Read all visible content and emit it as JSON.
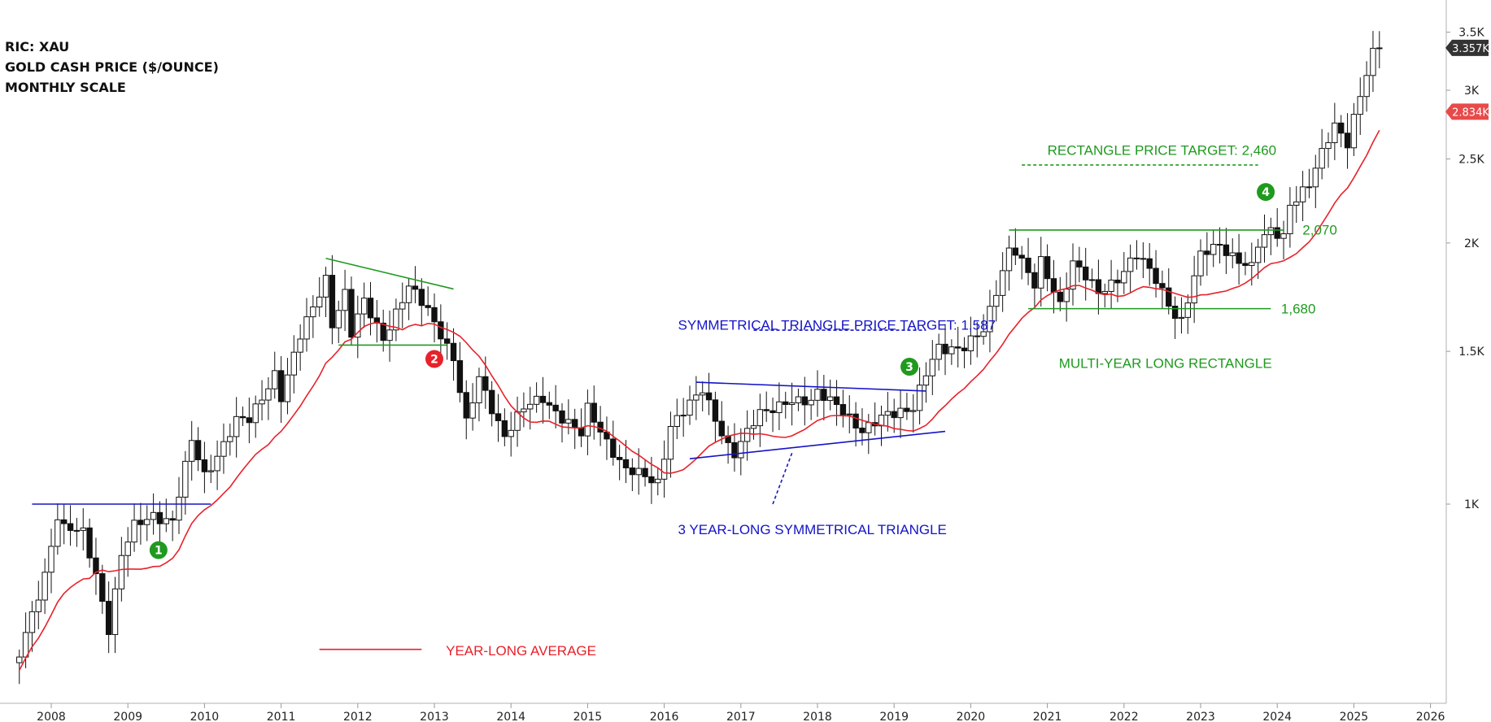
{
  "header": {
    "ric": "RIC: XAU",
    "name": "GOLD CASH PRICE ($/OUNCE)",
    "scale": "MONTHLY SCALE"
  },
  "colors": {
    "up": "#ffffff",
    "down": "#111111",
    "average": "#e8212a",
    "green": "#1f9a1f",
    "blue": "#1414c8",
    "red": "#e8212a",
    "lastPriceTag": "#333333",
    "averageTag": "#e84a4a"
  },
  "price_tags": {
    "last_price": "3.357K",
    "average": "2.834K"
  },
  "annotations": {
    "sym_target": "SYMMETRICAL TRIANGLE PRICE TARGET: 1,587",
    "sym_triangle": "3 YEAR-LONG SYMMETRICAL TRIANGLE",
    "rect_target": "RECTANGLE PRICE TARGET: 2,460",
    "rect_top": "2,070",
    "rect_bottom": "1,680",
    "rectangle": "MULTI-YEAR LONG RECTANGLE",
    "average_legend": "YEAR-LONG AVERAGE"
  },
  "markers": [
    {
      "label": "1",
      "color": "green",
      "date": "2009.4",
      "price": 885
    },
    {
      "label": "2",
      "color": "red",
      "date": "2013.0",
      "price": 1470
    },
    {
      "label": "3",
      "color": "green",
      "date": "2019.2",
      "price": 1440
    },
    {
      "label": "4",
      "color": "green",
      "date": "2023.85",
      "price": 2290
    }
  ],
  "chart_data": {
    "type": "candlestick",
    "title": "GOLD CASH PRICE ($/OUNCE)",
    "interval": "monthly",
    "y_scale": "log",
    "ylim": [
      600,
      3700
    ],
    "xlim": [
      "2007-08",
      "2026-03"
    ],
    "x_tick_labels": [
      "2008",
      "2009",
      "2010",
      "2011",
      "2012",
      "2013",
      "2014",
      "2015",
      "2016",
      "2017",
      "2018",
      "2019",
      "2020",
      "2021",
      "2022",
      "2023",
      "2024",
      "2025",
      "2026"
    ],
    "y_tick_labels": [
      {
        "label": "1K",
        "value": 1000
      },
      {
        "label": "1.5K",
        "value": 1500
      },
      {
        "label": "2K",
        "value": 2000
      },
      {
        "label": "2.5K",
        "value": 2500
      },
      {
        "label": "3K",
        "value": 3000
      },
      {
        "label": "3.5K",
        "value": 3500
      }
    ],
    "anchors": [
      [
        "2007-08",
        668
      ],
      [
        "2007-12",
        834
      ],
      [
        "2008-02",
        970
      ],
      [
        "2008-03",
        935
      ],
      [
        "2008-06",
        925
      ],
      [
        "2008-08",
        833
      ],
      [
        "2008-10",
        720
      ],
      [
        "2008-12",
        870
      ],
      [
        "2009-02",
        940
      ],
      [
        "2009-05",
        975
      ],
      [
        "2009-08",
        955
      ],
      [
        "2009-11",
        1180
      ],
      [
        "2010-01",
        1080
      ],
      [
        "2010-06",
        1245
      ],
      [
        "2010-08",
        1246
      ],
      [
        "2010-12",
        1420
      ],
      [
        "2011-01",
        1332
      ],
      [
        "2011-04",
        1556
      ],
      [
        "2011-08",
        1828
      ],
      [
        "2011-09",
        1620
      ],
      [
        "2011-11",
        1746
      ],
      [
        "2011-12",
        1565
      ],
      [
        "2012-02",
        1710
      ],
      [
        "2012-05",
        1560
      ],
      [
        "2012-09",
        1772
      ],
      [
        "2012-12",
        1675
      ],
      [
        "2013-02",
        1580
      ],
      [
        "2013-04",
        1472
      ],
      [
        "2013-06",
        1233
      ],
      [
        "2013-08",
        1395
      ],
      [
        "2013-12",
        1202
      ],
      [
        "2014-03",
        1285
      ],
      [
        "2014-06",
        1327
      ],
      [
        "2014-12",
        1199
      ],
      [
        "2015-01",
        1283
      ],
      [
        "2015-07",
        1095
      ],
      [
        "2015-11",
        1064
      ],
      [
        "2015-12",
        1060
      ],
      [
        "2016-02",
        1238
      ],
      [
        "2016-06",
        1322
      ],
      [
        "2016-07",
        1350
      ],
      [
        "2016-11",
        1172
      ],
      [
        "2016-12",
        1146
      ],
      [
        "2017-04",
        1268
      ],
      [
        "2017-08",
        1320
      ],
      [
        "2017-12",
        1302
      ],
      [
        "2018-01",
        1343
      ],
      [
        "2018-04",
        1315
      ],
      [
        "2018-08",
        1201
      ],
      [
        "2018-12",
        1282
      ],
      [
        "2019-04",
        1284
      ],
      [
        "2019-06",
        1409
      ],
      [
        "2019-08",
        1520
      ],
      [
        "2019-12",
        1517
      ],
      [
        "2020-03",
        1577
      ],
      [
        "2020-07",
        1975
      ],
      [
        "2020-08",
        1968
      ],
      [
        "2020-11",
        1776
      ],
      [
        "2020-12",
        1895
      ],
      [
        "2021-03",
        1707
      ],
      [
        "2021-05",
        1905
      ],
      [
        "2021-09",
        1743
      ],
      [
        "2021-12",
        1829
      ],
      [
        "2022-02",
        1909
      ],
      [
        "2022-03",
        1937
      ],
      [
        "2022-06",
        1807
      ],
      [
        "2022-09",
        1660
      ],
      [
        "2022-10",
        1633
      ],
      [
        "2022-12",
        1824
      ],
      [
        "2023-01",
        1928
      ],
      [
        "2023-04",
        1990
      ],
      [
        "2023-09",
        1870
      ],
      [
        "2023-10",
        1984
      ],
      [
        "2023-12",
        2063
      ],
      [
        "2024-02",
        2044
      ],
      [
        "2024-03",
        2230
      ],
      [
        "2024-06",
        2327
      ],
      [
        "2024-09",
        2634
      ],
      [
        "2024-10",
        2744
      ],
      [
        "2024-12",
        2625
      ],
      [
        "2025-01",
        2798
      ],
      [
        "2025-03",
        3124
      ],
      [
        "2025-04",
        3288
      ],
      [
        "2025-05",
        3357
      ]
    ],
    "series": [
      {
        "name": "YEAR-LONG AVERAGE",
        "type": "line",
        "period_months": 12
      }
    ],
    "drawings": [
      {
        "type": "line",
        "color": "blue",
        "from": [
          "2007-10",
          1000
        ],
        "to": [
          "2010-02",
          1000
        ]
      },
      {
        "type": "line",
        "color": "green",
        "from": [
          "2011-08",
          1920
        ],
        "to": [
          "2013-04",
          1770
        ]
      },
      {
        "type": "line",
        "color": "green",
        "from": [
          "2011-10",
          1525
        ],
        "to": [
          "2013-03",
          1525
        ]
      },
      {
        "type": "line",
        "color": "blue",
        "from": [
          "2016-06",
          1382
        ],
        "to": [
          "2019-06",
          1350
        ]
      },
      {
        "type": "line",
        "color": "blue",
        "from": [
          "2016-05",
          1128
        ],
        "to": [
          "2019-09",
          1213
        ]
      },
      {
        "type": "line",
        "color": "blue",
        "dash": true,
        "from": [
          "2017-09",
          1145
        ],
        "to": [
          "2017-06",
          1000
        ]
      },
      {
        "type": "line",
        "color": "blue",
        "dash": true,
        "from": [
          "2017-03",
          1587
        ],
        "to": [
          "2019-06",
          1587
        ]
      },
      {
        "type": "line",
        "color": "green",
        "from": [
          "2020-07",
          2070
        ],
        "to": [
          "2024-02",
          2070
        ]
      },
      {
        "type": "line",
        "color": "green",
        "from": [
          "2020-10",
          1680
        ],
        "to": [
          "2023-12",
          1680
        ]
      },
      {
        "type": "line",
        "color": "green",
        "dash": true,
        "from": [
          "2020-09",
          2460
        ],
        "to": [
          "2023-10",
          2460
        ]
      },
      {
        "type": "line",
        "color": "red",
        "from": [
          "2011-07",
          680
        ],
        "to": [
          "2012-11",
          680
        ]
      }
    ]
  }
}
